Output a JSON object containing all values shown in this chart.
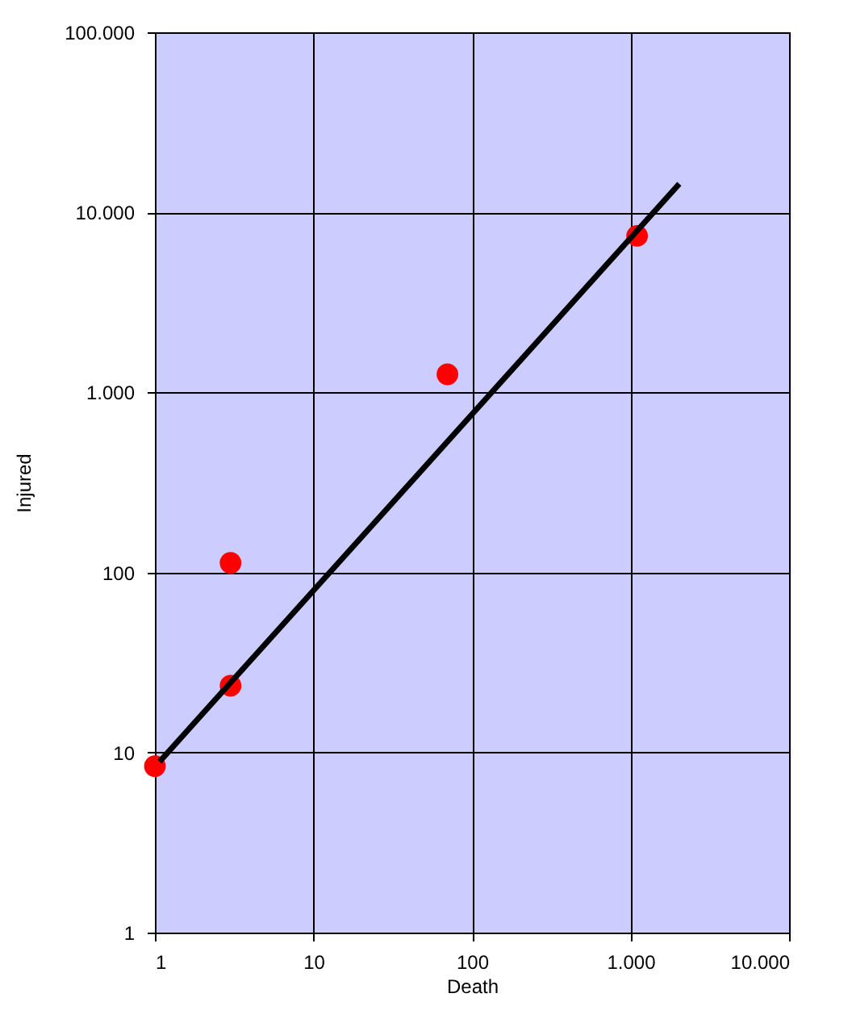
{
  "chart_data": {
    "type": "scatter",
    "xlabel": "Death",
    "ylabel": "Injured",
    "log": "xy",
    "grid": true,
    "xlim": [
      1,
      10000
    ],
    "ylim": [
      1,
      100000
    ],
    "xticks": [
      1,
      10,
      100,
      {
        "value": 1000,
        "label": "1.000"
      },
      {
        "value": 10000,
        "label": "10.000"
      }
    ],
    "yticks": [
      1,
      10,
      100,
      {
        "value": 1000,
        "label": "1.000"
      },
      {
        "value": 10000,
        "label": "10.000"
      },
      {
        "value": 100000,
        "label": "100.000"
      }
    ],
    "series": [
      {
        "marker": "circle",
        "color": "#ff0000",
        "x": [
          1,
          3,
          3,
          70,
          1100
        ],
        "values": [
          8.4,
          23.5,
          113,
          1260,
          7400
        ]
      },
      {
        "type": "line",
        "color": "#000000",
        "x": [
          1.07,
          2030
        ],
        "values": [
          8.9,
          14400
        ]
      }
    ]
  }
}
